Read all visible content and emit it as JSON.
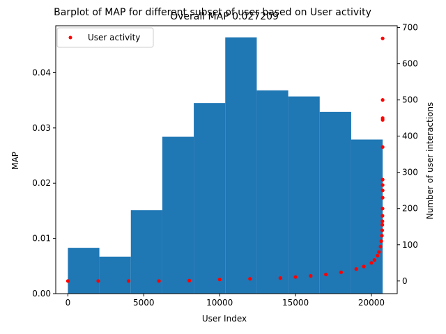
{
  "chart_data": {
    "type": "bar",
    "title": "Barplot of MAP for different subset of user based on User activity",
    "subtitle": "Overall MAP 0.027209",
    "xlabel": "User Index",
    "ylabel": "MAP",
    "y2label": "Number of user interactions",
    "xlim": [
      -800,
      21700
    ],
    "ylim": [
      0,
      0.0485
    ],
    "y2lim": [
      -35,
      705
    ],
    "xticks": [
      0,
      5000,
      10000,
      15000,
      20000
    ],
    "yticks": [
      0.0,
      0.01,
      0.02,
      0.03,
      0.04
    ],
    "yticklabels": [
      "0.00",
      "0.01",
      "0.02",
      "0.03",
      "0.04"
    ],
    "y2ticks": [
      0,
      100,
      200,
      300,
      400,
      500,
      600,
      700
    ],
    "bars": {
      "bin_edges": [
        0,
        2074,
        4148,
        6222,
        8296,
        10370,
        12444,
        14518,
        16592,
        18666,
        20740
      ],
      "values": [
        0.0083,
        0.0067,
        0.0151,
        0.0284,
        0.0345,
        0.0464,
        0.0368,
        0.0357,
        0.0329,
        0.0279
      ],
      "color": "#1f77b4"
    },
    "scatter": {
      "name": "User activity",
      "color": "#ff0000",
      "axis": "right",
      "x": [
        0,
        2000,
        4000,
        6000,
        8000,
        10000,
        12000,
        14000,
        15000,
        16000,
        17000,
        18000,
        19000,
        19500,
        20000,
        20200,
        20400,
        20500,
        20600,
        20650,
        20690,
        20710,
        20720,
        20725,
        20730,
        20735,
        20740,
        20740,
        20740,
        20740,
        20740,
        20740,
        20740,
        20740,
        20740
      ],
      "y": [
        0,
        0,
        0,
        0,
        1,
        4,
        6,
        8,
        11,
        14,
        18,
        24,
        33,
        40,
        50,
        58,
        70,
        80,
        95,
        110,
        125,
        140,
        155,
        165,
        180,
        200,
        230,
        250,
        265,
        280,
        370,
        445,
        450,
        500,
        670
      ]
    },
    "legend": {
      "location": "top-left",
      "entries": [
        "User activity"
      ]
    },
    "grid": false
  }
}
